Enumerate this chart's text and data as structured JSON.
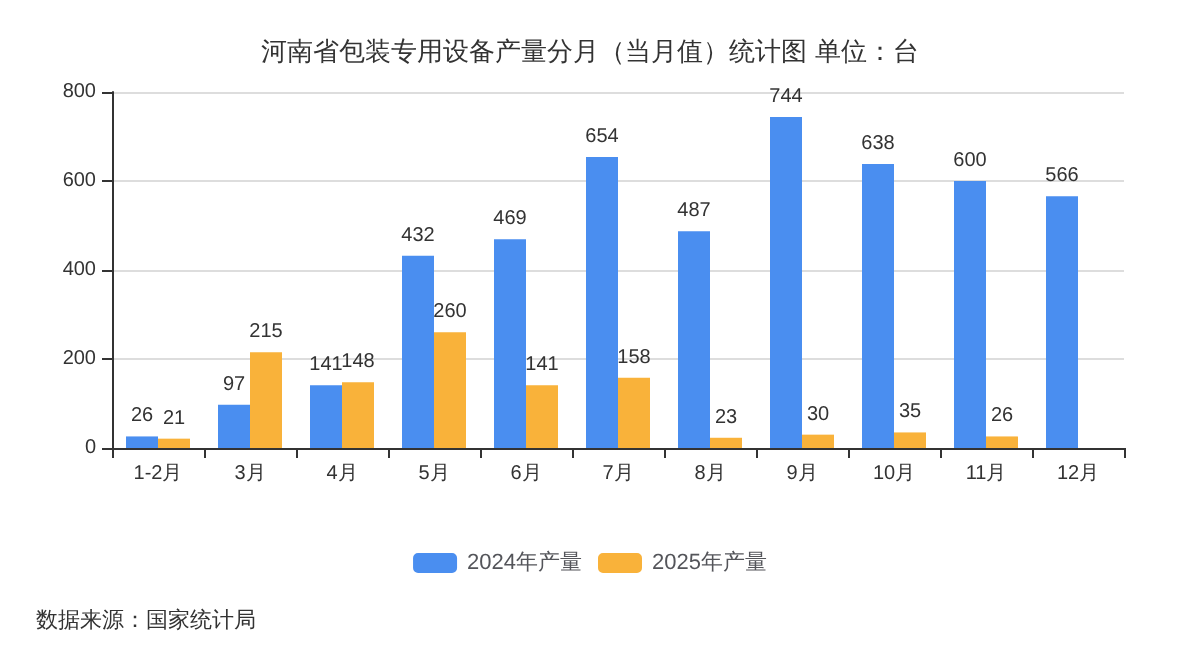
{
  "chart_data": {
    "type": "bar",
    "title": "河南省包装专用设备产量分月（当月值）统计图 单位：台",
    "categories": [
      "1-2月",
      "3月",
      "4月",
      "5月",
      "6月",
      "7月",
      "8月",
      "9月",
      "10月",
      "11月",
      "12月"
    ],
    "series": [
      {
        "name": "2024年产量",
        "color": "#4a8ef0",
        "values": [
          26,
          97,
          141,
          432,
          469,
          654,
          487,
          744,
          638,
          600,
          566
        ]
      },
      {
        "name": "2025年产量",
        "color": "#f9b23a",
        "values": [
          21,
          215,
          148,
          260,
          141,
          158,
          23,
          30,
          35,
          26,
          null
        ]
      }
    ],
    "ylim": [
      0,
      800
    ],
    "yticks": [
      0,
      200,
      400,
      600,
      800
    ],
    "grid": "y",
    "legend": "bottom",
    "data_labels": true,
    "annotations": [
      "数据来源：国家统计局"
    ]
  }
}
